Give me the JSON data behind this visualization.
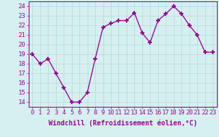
{
  "x": [
    0,
    1,
    2,
    3,
    4,
    5,
    6,
    7,
    8,
    9,
    10,
    11,
    12,
    13,
    14,
    15,
    16,
    17,
    18,
    19,
    20,
    21,
    22,
    23
  ],
  "y": [
    19,
    18,
    18.5,
    17,
    15.5,
    14,
    14,
    15,
    18.5,
    21.8,
    22.2,
    22.5,
    22.5,
    23.3,
    21.2,
    20.2,
    22.5,
    23.2,
    24,
    23.2,
    22,
    21,
    19.2,
    19.2
  ],
  "line_color": "#990099",
  "marker": "+",
  "marker_size": 5,
  "marker_lw": 1.5,
  "linewidth": 1,
  "xlabel": "Windchill (Refroidissement éolien,°C)",
  "xlabel_fontsize": 7,
  "xticks": [
    0,
    1,
    2,
    3,
    4,
    5,
    6,
    7,
    8,
    9,
    10,
    11,
    12,
    13,
    14,
    15,
    16,
    17,
    18,
    19,
    20,
    21,
    22,
    23
  ],
  "yticks": [
    14,
    15,
    16,
    17,
    18,
    19,
    20,
    21,
    22,
    23,
    24
  ],
  "ylim": [
    13.5,
    24.5
  ],
  "xlim": [
    -0.5,
    23.5
  ],
  "bg_color": "#d6f0f0",
  "grid_color": "#b0d8d8",
  "tick_fontsize": 6.5,
  "linestyle": "-"
}
